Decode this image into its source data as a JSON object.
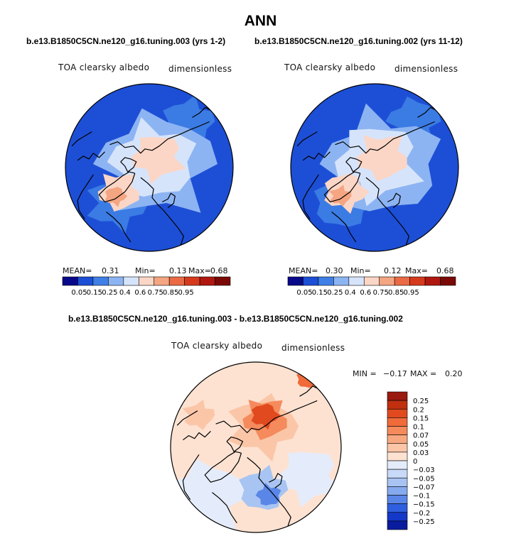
{
  "page": {
    "title": "ANN",
    "panel_titles": [
      "b.e13.B1850C5CN.ne120_g16.tuning.003 (yrs 1-2)",
      "b.e13.B1850C5CN.ne120_g16.tuning.002 (yrs 11-12)"
    ],
    "diff_title": "b.e13.B1850C5CN.ne120_g16.tuning.003 - b.e13.B1850C5CN.ne120_g16.tuning.002"
  },
  "chart_data": [
    {
      "type": "heatmap",
      "projection": "north-polar-stereographic",
      "title": "b.e13.B1850C5CN.ne120_g16.tuning.003 (yrs 1-2)",
      "left_label": "TOA clearsky albedo",
      "right_label": "dimensionless",
      "stats": {
        "mean_label": "MEAN=",
        "mean": "0.31",
        "min_label": "Min=",
        "min": "0.13",
        "max_label": "Max=",
        "max": "0.68"
      },
      "colorbar": {
        "levels": [
          "0.05",
          "0.15",
          "0.25",
          "0.4",
          "0.6",
          "0.75",
          "0.85",
          "0.95"
        ],
        "colors": [
          "#08088a",
          "#1d4fd6",
          "#3f7fe6",
          "#8db4f2",
          "#d6e4fb",
          "#fbd6c6",
          "#f4a582",
          "#ea6a45",
          "#d63a1c",
          "#b0180f",
          "#7a0806"
        ]
      }
    },
    {
      "type": "heatmap",
      "projection": "north-polar-stereographic",
      "title": "b.e13.B1850C5CN.ne120_g16.tuning.002 (yrs 11-12)",
      "left_label": "TOA clearsky albedo",
      "right_label": "dimensionless",
      "stats": {
        "mean_label": "MEAN=",
        "mean": "0.30",
        "min_label": "Min=",
        "min": "0.12",
        "max_label": "Max=",
        "max": "0.68"
      },
      "colorbar": {
        "levels": [
          "0.05",
          "0.15",
          "0.25",
          "0.4",
          "0.6",
          "0.75",
          "0.85",
          "0.95"
        ],
        "colors": [
          "#08088a",
          "#1d4fd6",
          "#3f7fe6",
          "#8db4f2",
          "#d6e4fb",
          "#fbd6c6",
          "#f4a582",
          "#ea6a45",
          "#d63a1c",
          "#b0180f",
          "#7a0806"
        ]
      }
    },
    {
      "type": "heatmap",
      "projection": "north-polar-stereographic",
      "title": "b.e13.B1850C5CN.ne120_g16.tuning.003 - b.e13.B1850C5CN.ne120_g16.tuning.002",
      "left_label": "TOA clearsky albedo",
      "right_label": "dimensionless",
      "stats": {
        "min_label": "MIN =",
        "min": "−0.17",
        "max_label": "MAX =",
        "max": "0.20"
      },
      "colorbar": {
        "levels": [
          "0.25",
          "0.2",
          "0.15",
          "0.1",
          "0.07",
          "0.05",
          "0.03",
          "0",
          "−0.03",
          "−0.05",
          "−0.07",
          "−0.1",
          "−0.15",
          "−0.2",
          "−0.25"
        ],
        "colors": [
          "#9a1a0f",
          "#c0300f",
          "#e04a1e",
          "#f06a3a",
          "#f58a5c",
          "#f8a880",
          "#fbc6a8",
          "#fde2d2",
          "#e4ecfb",
          "#c8daf7",
          "#a8c4f2",
          "#86aaee",
          "#5a86e8",
          "#2f5fe0",
          "#1438c8",
          "#0a1c9e"
        ]
      }
    }
  ]
}
